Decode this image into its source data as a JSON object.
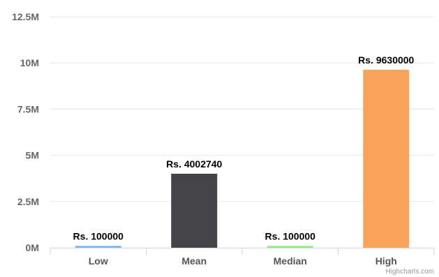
{
  "chart_data": {
    "type": "bar",
    "categories": [
      "Low",
      "Mean",
      "Median",
      "High"
    ],
    "values": [
      100000,
      4002740,
      100000,
      9630000
    ],
    "data_labels": [
      "Rs. 100000",
      "Rs. 4002740",
      "Rs. 100000",
      "Rs. 9630000"
    ],
    "colors": [
      "#7cb5ec",
      "#434348",
      "#90ed7d",
      "#f7a35c"
    ],
    "yticks": [
      0,
      2500000,
      5000000,
      7500000,
      10000000,
      12500000
    ],
    "ytick_labels": [
      "0M",
      "2.5M",
      "5M",
      "7.5M",
      "10M",
      "12.5M"
    ],
    "ylim": [
      0,
      12500000
    ],
    "grid": true,
    "legend": "none"
  },
  "credits": "Highcharts.com"
}
